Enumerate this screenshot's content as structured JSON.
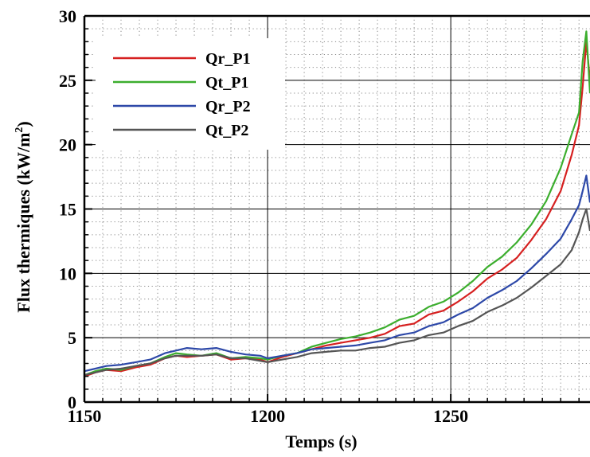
{
  "chart_data": {
    "type": "line",
    "title": "",
    "xlabel": "Temps (s)",
    "ylabel_main": "Flux thermiques (kW/m",
    "ylabel_sup": "2",
    "ylabel_tail": ")",
    "xlim": [
      1150,
      1288
    ],
    "ylim": [
      0,
      30
    ],
    "xticks": [
      1150,
      1200,
      1250
    ],
    "xtick_labels": [
      "1150",
      "1200",
      "1250"
    ],
    "yticks": [
      0,
      5,
      10,
      15,
      20,
      25,
      30
    ],
    "ytick_labels": [
      "0",
      "5",
      "10",
      "15",
      "20",
      "25",
      "30"
    ],
    "x_minor_step": 5,
    "y_minor_step": 1,
    "grid": "major solid, minor dotted",
    "legend_position": "top-left",
    "series": [
      {
        "name": "Qr_P1",
        "color": "#d62020",
        "x": [
          1150,
          1153,
          1156,
          1160,
          1164,
          1168,
          1172,
          1175,
          1178,
          1182,
          1186,
          1190,
          1194,
          1198,
          1200,
          1204,
          1208,
          1212,
          1216,
          1220,
          1224,
          1228,
          1232,
          1236,
          1240,
          1244,
          1248,
          1252,
          1256,
          1260,
          1264,
          1268,
          1272,
          1276,
          1280,
          1283,
          1285,
          1286,
          1287,
          1288
        ],
        "y": [
          2.0,
          2.3,
          2.5,
          2.4,
          2.7,
          2.9,
          3.4,
          3.6,
          3.5,
          3.6,
          3.7,
          3.3,
          3.4,
          3.3,
          3.1,
          3.5,
          3.8,
          4.1,
          4.4,
          4.6,
          4.8,
          5.0,
          5.3,
          5.9,
          6.1,
          6.8,
          7.1,
          7.8,
          8.6,
          9.6,
          10.3,
          11.2,
          12.6,
          14.2,
          16.4,
          19.2,
          21.5,
          24.5,
          28.0,
          25.0
        ]
      },
      {
        "name": "Qt_P1",
        "color": "#3cae2e",
        "x": [
          1150,
          1153,
          1156,
          1160,
          1164,
          1168,
          1172,
          1175,
          1178,
          1182,
          1186,
          1190,
          1194,
          1198,
          1200,
          1204,
          1208,
          1212,
          1216,
          1220,
          1224,
          1228,
          1232,
          1236,
          1240,
          1244,
          1248,
          1252,
          1256,
          1260,
          1264,
          1268,
          1272,
          1276,
          1280,
          1283,
          1285,
          1286,
          1287,
          1288
        ],
        "y": [
          2.1,
          2.4,
          2.6,
          2.5,
          2.8,
          3.0,
          3.5,
          3.8,
          3.7,
          3.6,
          3.8,
          3.4,
          3.5,
          3.4,
          3.3,
          3.6,
          3.8,
          4.3,
          4.6,
          4.9,
          5.1,
          5.4,
          5.8,
          6.4,
          6.7,
          7.4,
          7.8,
          8.5,
          9.4,
          10.5,
          11.3,
          12.4,
          13.8,
          15.6,
          18.2,
          20.8,
          22.5,
          26.5,
          28.8,
          24.0
        ]
      },
      {
        "name": "Qr_P2",
        "color": "#2d48a8",
        "x": [
          1150,
          1153,
          1156,
          1160,
          1164,
          1168,
          1172,
          1175,
          1178,
          1182,
          1186,
          1190,
          1194,
          1198,
          1200,
          1204,
          1208,
          1212,
          1216,
          1220,
          1224,
          1228,
          1232,
          1236,
          1240,
          1244,
          1248,
          1252,
          1256,
          1260,
          1264,
          1268,
          1272,
          1276,
          1280,
          1283,
          1285,
          1286,
          1287,
          1288
        ],
        "y": [
          2.4,
          2.6,
          2.8,
          2.9,
          3.1,
          3.3,
          3.8,
          4.0,
          4.2,
          4.1,
          4.2,
          3.9,
          3.7,
          3.6,
          3.4,
          3.6,
          3.8,
          4.1,
          4.2,
          4.3,
          4.4,
          4.6,
          4.8,
          5.2,
          5.4,
          5.9,
          6.2,
          6.8,
          7.3,
          8.1,
          8.7,
          9.4,
          10.4,
          11.5,
          12.7,
          14.2,
          15.3,
          16.4,
          17.6,
          15.5
        ]
      },
      {
        "name": "Qt_P2",
        "color": "#555555",
        "x": [
          1150,
          1153,
          1156,
          1160,
          1164,
          1168,
          1172,
          1175,
          1178,
          1182,
          1186,
          1190,
          1194,
          1198,
          1200,
          1204,
          1208,
          1212,
          1216,
          1220,
          1224,
          1228,
          1232,
          1236,
          1240,
          1244,
          1248,
          1252,
          1256,
          1260,
          1264,
          1268,
          1272,
          1276,
          1280,
          1283,
          1285,
          1286,
          1287,
          1288
        ],
        "y": [
          2.1,
          2.3,
          2.5,
          2.6,
          2.8,
          3.0,
          3.4,
          3.6,
          3.6,
          3.6,
          3.7,
          3.4,
          3.4,
          3.2,
          3.1,
          3.3,
          3.5,
          3.8,
          3.9,
          4.0,
          4.0,
          4.2,
          4.3,
          4.6,
          4.8,
          5.2,
          5.4,
          5.9,
          6.3,
          7.0,
          7.5,
          8.1,
          8.9,
          9.8,
          10.7,
          11.8,
          13.2,
          14.2,
          15.0,
          13.3
        ]
      }
    ]
  }
}
